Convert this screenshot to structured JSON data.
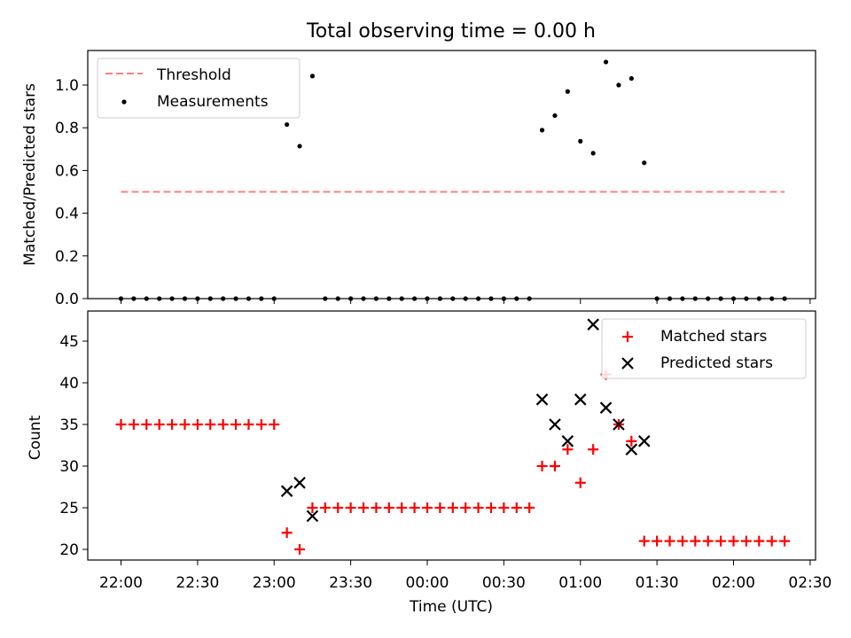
{
  "chart_data": [
    {
      "type": "scatter",
      "title": "Total observing time = 0.00 h",
      "xlabel": "",
      "ylabel": "Matched/Predicted stars",
      "ylim": [
        0,
        1.15
      ],
      "yticks": [
        "0.0",
        "0.2",
        "0.4",
        "0.6",
        "0.8",
        "1.0"
      ],
      "legend_position": "upper-left",
      "series": [
        {
          "name": "Threshold",
          "kind": "dashed-line",
          "color": "#ff7f7f",
          "x": [
            "22:00",
            "02:20"
          ],
          "y": [
            0.5,
            0.5
          ]
        },
        {
          "name": "Measurements",
          "kind": "dot",
          "color": "#000000",
          "x": [
            "22:00",
            "22:05",
            "22:10",
            "22:15",
            "22:20",
            "22:25",
            "22:30",
            "22:35",
            "22:40",
            "22:45",
            "22:50",
            "22:55",
            "23:00",
            "23:05",
            "23:10",
            "23:15",
            "23:20",
            "23:25",
            "23:30",
            "23:35",
            "23:40",
            "23:45",
            "23:50",
            "23:55",
            "00:00",
            "00:05",
            "00:10",
            "00:15",
            "00:20",
            "00:25",
            "00:30",
            "00:35",
            "00:40",
            "00:45",
            "00:50",
            "00:55",
            "01:00",
            "01:05",
            "01:10",
            "01:15",
            "01:20",
            "01:25",
            "01:30",
            "01:35",
            "01:40",
            "01:45",
            "01:50",
            "01:55",
            "02:00",
            "02:05",
            "02:10",
            "02:15",
            "02:20"
          ],
          "y": [
            0,
            0,
            0,
            0,
            0,
            0,
            0,
            0,
            0,
            0,
            0,
            0,
            0,
            0.815,
            0.714,
            1.042,
            0,
            0,
            0,
            0,
            0,
            0,
            0,
            0,
            0,
            0,
            0,
            0,
            0,
            0,
            0,
            0,
            0,
            0.789,
            0.857,
            0.97,
            0.737,
            0.681,
            1.108,
            1.0,
            1.031,
            0.636,
            0,
            0,
            0,
            0,
            0,
            0,
            0,
            0,
            0,
            0,
            0
          ]
        }
      ]
    },
    {
      "type": "scatter",
      "title": "",
      "xlabel": "Time (UTC)",
      "ylabel": "Count",
      "ylim": [
        18.8,
        48.5
      ],
      "yticks": [
        "20",
        "25",
        "30",
        "35",
        "40",
        "45"
      ],
      "xticks": [
        "22:00",
        "22:30",
        "23:00",
        "23:30",
        "00:00",
        "00:30",
        "01:00",
        "01:30",
        "02:00",
        "02:30"
      ],
      "legend_position": "upper-right",
      "series": [
        {
          "name": "Matched stars",
          "kind": "plus",
          "color": "#ff0000",
          "x": [
            "22:00",
            "22:05",
            "22:10",
            "22:15",
            "22:20",
            "22:25",
            "22:30",
            "22:35",
            "22:40",
            "22:45",
            "22:50",
            "22:55",
            "23:00",
            "23:05",
            "23:10",
            "23:15",
            "23:20",
            "23:25",
            "23:30",
            "23:35",
            "23:40",
            "23:45",
            "23:50",
            "23:55",
            "00:00",
            "00:05",
            "00:10",
            "00:15",
            "00:20",
            "00:25",
            "00:30",
            "00:35",
            "00:40",
            "00:45",
            "00:50",
            "00:55",
            "01:00",
            "01:05",
            "01:10",
            "01:15",
            "01:20",
            "01:25",
            "01:30",
            "01:35",
            "01:40",
            "01:45",
            "01:50",
            "01:55",
            "02:00",
            "02:05",
            "02:10",
            "02:15",
            "02:20"
          ],
          "y": [
            35,
            35,
            35,
            35,
            35,
            35,
            35,
            35,
            35,
            35,
            35,
            35,
            35,
            22,
            20,
            25,
            25,
            25,
            25,
            25,
            25,
            25,
            25,
            25,
            25,
            25,
            25,
            25,
            25,
            25,
            25,
            25,
            25,
            30,
            30,
            32,
            28,
            32,
            41,
            35,
            33,
            21,
            21,
            21,
            21,
            21,
            21,
            21,
            21,
            21,
            21,
            21,
            21
          ]
        },
        {
          "name": "Predicted stars",
          "kind": "x",
          "color": "#000000",
          "x": [
            "23:05",
            "23:10",
            "23:15",
            "00:45",
            "00:50",
            "00:55",
            "01:00",
            "01:05",
            "01:10",
            "01:15",
            "01:20",
            "01:25"
          ],
          "y": [
            27,
            28,
            24,
            38,
            35,
            33,
            38,
            47,
            37,
            35,
            32,
            33
          ]
        }
      ]
    }
  ]
}
